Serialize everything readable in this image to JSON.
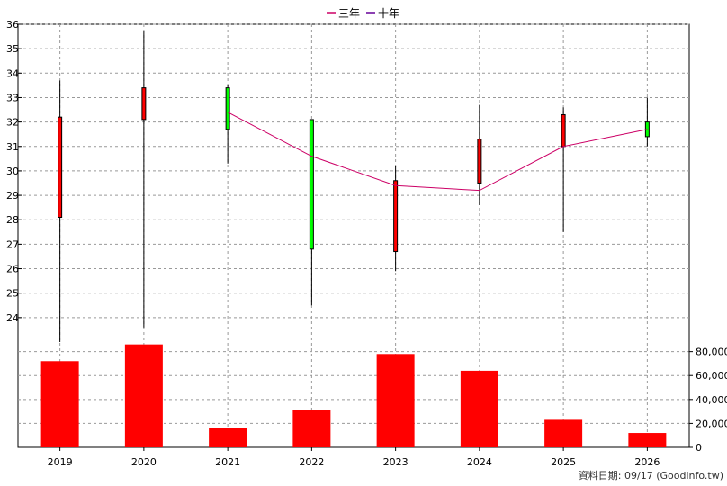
{
  "legend": [
    {
      "label": "三年",
      "color": "#cc0066"
    },
    {
      "label": "十年",
      "color": "#660099"
    }
  ],
  "footer_note": "資料日期: 09/17  (Goodinfo.tw)",
  "chart_data": [
    {
      "type": "candlestick",
      "categories": [
        "2019",
        "2020",
        "2021",
        "2022",
        "2023",
        "2024",
        "2025",
        "2026"
      ],
      "ylim": [
        23,
        36
      ],
      "yticks": [
        "24",
        "25",
        "26",
        "27",
        "28",
        "29",
        "30",
        "31",
        "32",
        "33",
        "34",
        "35",
        "36"
      ],
      "grid": true,
      "candles": [
        {
          "open": 32.2,
          "high": 33.7,
          "low": 23.0,
          "close": 28.1,
          "color": "#ff0000"
        },
        {
          "open": 33.4,
          "high": 35.7,
          "low": 23.6,
          "close": 32.1,
          "color": "#ff0000"
        },
        {
          "open": 31.7,
          "high": 33.5,
          "low": 30.3,
          "close": 33.4,
          "color": "#00ff00"
        },
        {
          "open": 26.8,
          "high": 32.1,
          "low": 24.5,
          "close": 32.1,
          "color": "#00ff00"
        },
        {
          "open": 29.6,
          "high": 30.2,
          "low": 25.9,
          "close": 26.7,
          "color": "#ff0000"
        },
        {
          "open": 31.3,
          "high": 32.7,
          "low": 28.6,
          "close": 29.5,
          "color": "#ff0000"
        },
        {
          "open": 32.3,
          "high": 32.6,
          "low": 27.5,
          "close": 31.0,
          "color": "#ff0000"
        },
        {
          "open": 31.4,
          "high": 33.0,
          "low": 31.0,
          "close": 32.0,
          "color": "#00ff00"
        }
      ],
      "series": [
        {
          "name": "三年",
          "color": "#cc0066",
          "values": [
            null,
            null,
            32.4,
            30.6,
            29.4,
            29.2,
            31.0,
            31.7
          ]
        }
      ]
    },
    {
      "type": "bar",
      "categories": [
        "2019",
        "2020",
        "2021",
        "2022",
        "2023",
        "2024",
        "2025",
        "2026"
      ],
      "values": [
        72000,
        86000,
        16000,
        31000,
        78000,
        64000,
        23000,
        12000
      ],
      "ylim": [
        0,
        88000
      ],
      "yticks": [
        "0",
        "20,000",
        "40,000",
        "60,000",
        "80,000"
      ],
      "color": "#ff0000",
      "grid": true
    }
  ]
}
